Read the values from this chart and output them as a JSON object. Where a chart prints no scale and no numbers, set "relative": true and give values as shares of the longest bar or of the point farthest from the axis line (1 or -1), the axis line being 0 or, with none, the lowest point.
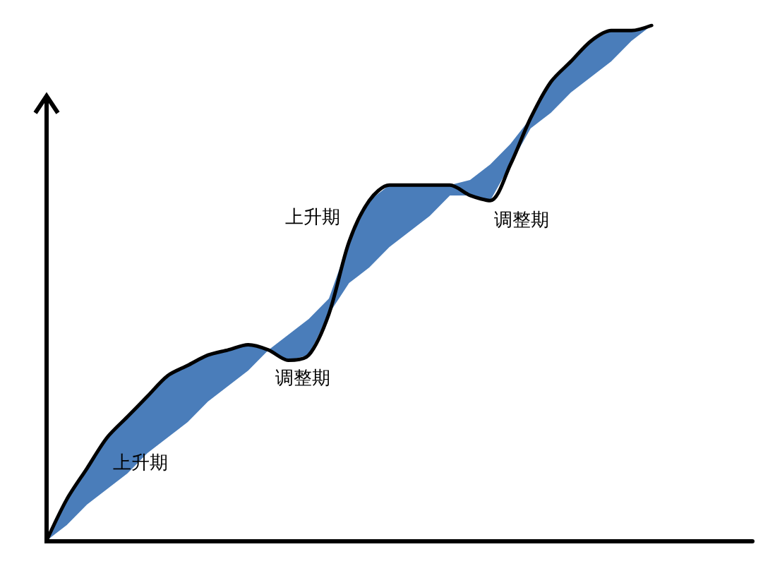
{
  "chart_data": {
    "type": "line",
    "relative": true,
    "grid": false,
    "marker": "none",
    "line_style": "solid",
    "categories": [
      null,
      null,
      null,
      null,
      null,
      null,
      null,
      null,
      null,
      null,
      null,
      null,
      null,
      null,
      null,
      null,
      null,
      null,
      null,
      null,
      null,
      null,
      null,
      null,
      null,
      null,
      null,
      null,
      null,
      null,
      null,
      null,
      null,
      null,
      null,
      null
    ],
    "series": [
      {
        "color": "#000000",
        "values": [
          0,
          0.08,
          0.14,
          0.2,
          0.24,
          0.28,
          0.32,
          0.34,
          0.36,
          0.37,
          0.38,
          0.37,
          0.35,
          0.36,
          0.44,
          0.58,
          0.66,
          0.69,
          0.69,
          0.69,
          0.69,
          0.67,
          0.66,
          0.73,
          0.82,
          0.89,
          0.93,
          0.97,
          0.99,
          0.99,
          1,
          null,
          null,
          null,
          null,
          null
        ],
        "lower": [
          0,
          0.03,
          0.07,
          0.1,
          0.13,
          0.17,
          0.2,
          0.23,
          0.27,
          0.3,
          0.33,
          0.37,
          0.35,
          0.36,
          0.44,
          0.5,
          0.53,
          0.57,
          0.6,
          0.63,
          0.67,
          0.67,
          0.66,
          0.73,
          0.8,
          0.83,
          0.87,
          0.9,
          0.93,
          0.97,
          1,
          null,
          null,
          null,
          null,
          null
        ],
        "upper": [
          0,
          0.08,
          0.14,
          0.2,
          0.24,
          0.28,
          0.32,
          0.34,
          0.36,
          0.37,
          0.38,
          0.37,
          0.4,
          0.43,
          0.47,
          0.58,
          0.66,
          0.69,
          0.69,
          0.69,
          0.69,
          0.7,
          0.73,
          0.77,
          0.82,
          0.89,
          0.93,
          0.97,
          0.99,
          0.99,
          1,
          null,
          null,
          null,
          null,
          null
        ]
      }
    ],
    "annotations": [
      "上升期",
      "调整期",
      "上升期",
      "调整期"
    ]
  }
}
